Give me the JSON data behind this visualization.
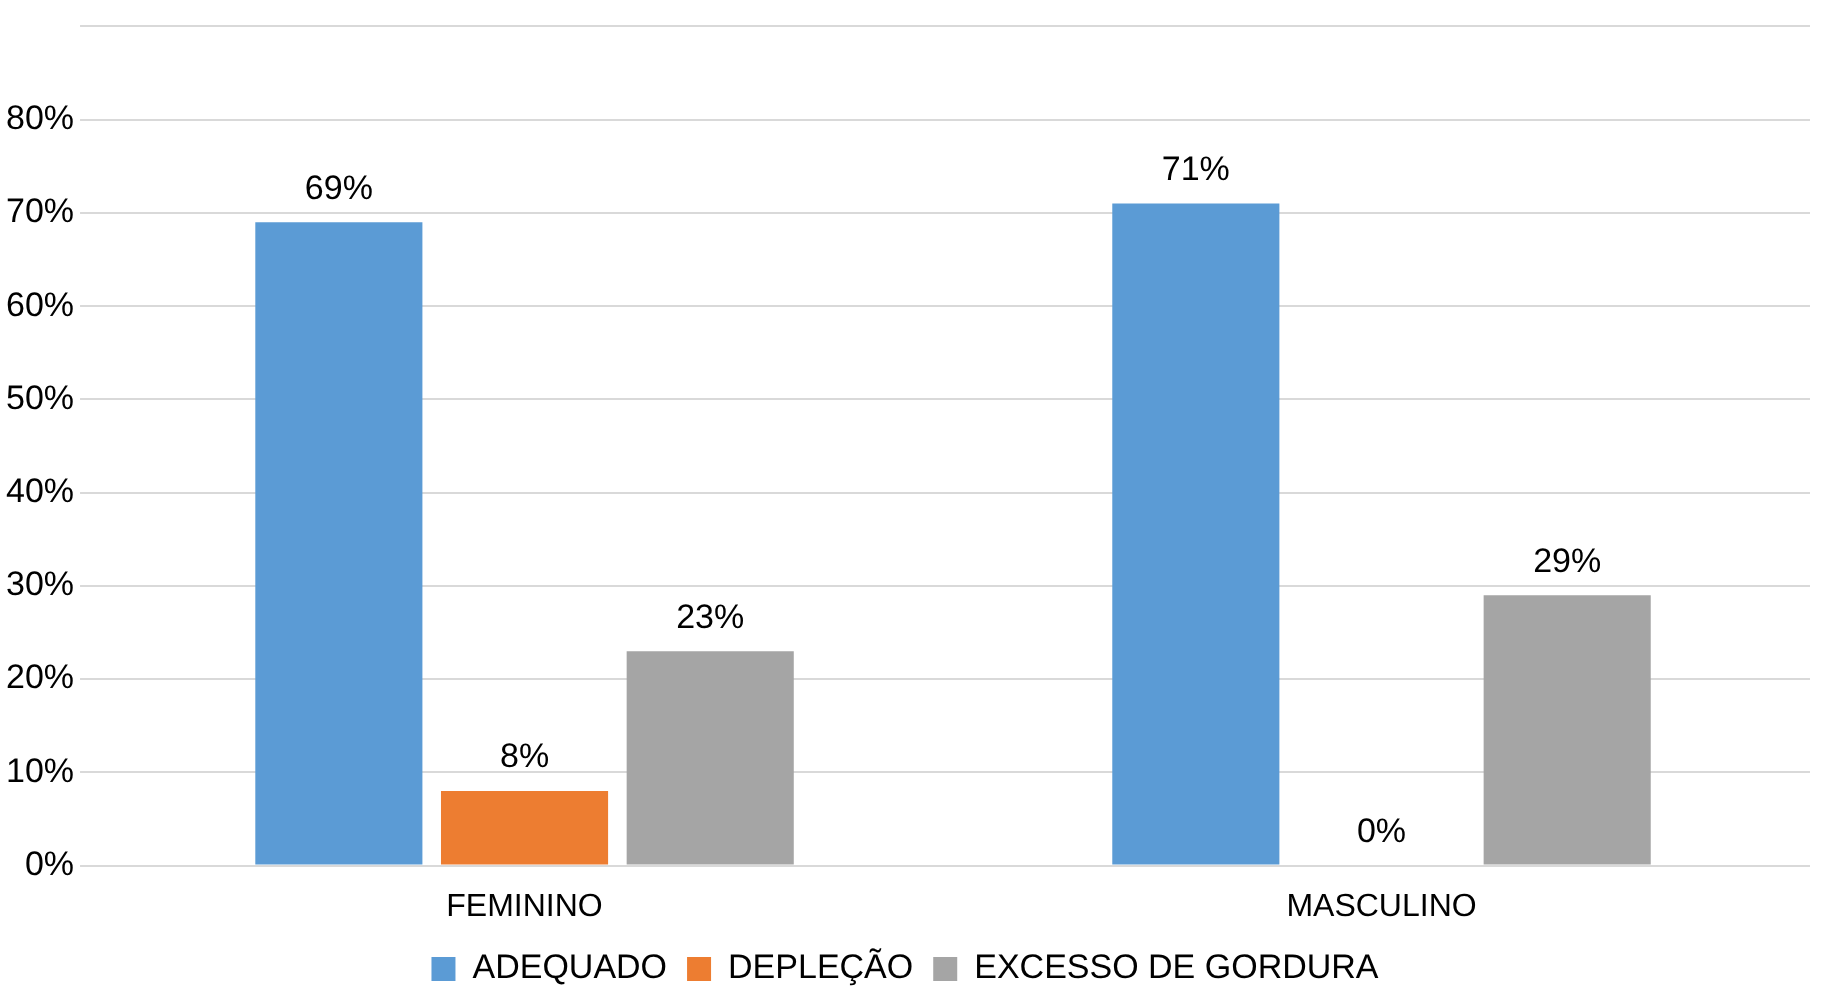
{
  "chart_data": {
    "type": "bar",
    "categories": [
      "FEMININO",
      "MASCULINO"
    ],
    "series": [
      {
        "name": "ADEQUADO",
        "color": "#5b9bd5",
        "values": [
          69,
          71
        ],
        "value_labels": [
          "69%",
          "71%"
        ]
      },
      {
        "name": "DEPLEÇÃO",
        "color": "#ed7d31",
        "values": [
          8,
          0
        ],
        "value_labels": [
          "8%",
          "0%"
        ]
      },
      {
        "name": "EXCESSO DE GORDURA",
        "color": "#a5a5a5",
        "values": [
          23,
          29
        ],
        "value_labels": [
          "23%",
          "29%"
        ]
      }
    ],
    "ylim": [
      0,
      90
    ],
    "yticks": [
      {
        "value": 0,
        "label": "0%"
      },
      {
        "value": 10,
        "label": "10%"
      },
      {
        "value": 20,
        "label": "20%"
      },
      {
        "value": 30,
        "label": "30%"
      },
      {
        "value": 40,
        "label": "40%"
      },
      {
        "value": 50,
        "label": "50%"
      },
      {
        "value": 60,
        "label": "60%"
      },
      {
        "value": 70,
        "label": "70%"
      },
      {
        "value": 80,
        "label": "80%"
      },
      {
        "value": 90,
        "label": null
      }
    ],
    "grid": "y",
    "legend": "bottom"
  }
}
